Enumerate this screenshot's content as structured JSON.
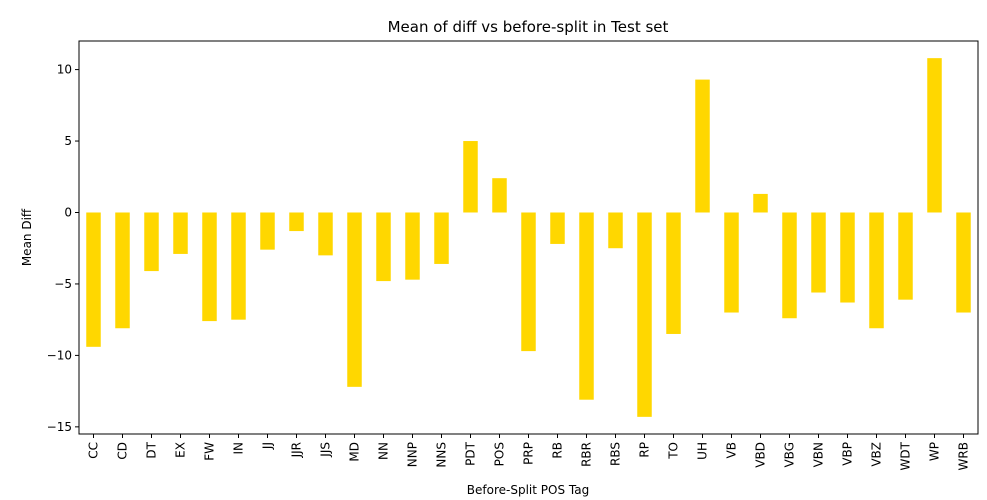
{
  "chart_data": {
    "type": "bar",
    "title": "Mean of diff vs before-split in Test set",
    "xlabel": "Before-Split POS Tag",
    "ylabel": "Mean Diff",
    "ylim": [
      -15.5,
      12
    ],
    "yticks": [
      -15,
      -10,
      -5,
      0,
      5,
      10
    ],
    "bar_color": "#FFD700",
    "grid": false,
    "categories": [
      "CC",
      "CD",
      "DT",
      "EX",
      "FW",
      "IN",
      "JJ",
      "JJR",
      "JJS",
      "MD",
      "NN",
      "NNP",
      "NNS",
      "PDT",
      "POS",
      "PRP",
      "RB",
      "RBR",
      "RBS",
      "RP",
      "TO",
      "UH",
      "VB",
      "VBD",
      "VBG",
      "VBN",
      "VBP",
      "VBZ",
      "WDT",
      "WP",
      "WRB"
    ],
    "values": [
      -9.4,
      -8.1,
      -4.1,
      -2.9,
      -7.6,
      -7.5,
      -2.6,
      -1.3,
      -3.0,
      -12.2,
      -4.8,
      -4.7,
      -3.6,
      5.0,
      2.4,
      -9.7,
      -2.2,
      -13.1,
      -2.5,
      -14.3,
      -8.5,
      9.3,
      -7.0,
      1.3,
      -7.4,
      -5.6,
      -6.3,
      -8.1,
      -6.1,
      10.8,
      -7.0
    ]
  }
}
